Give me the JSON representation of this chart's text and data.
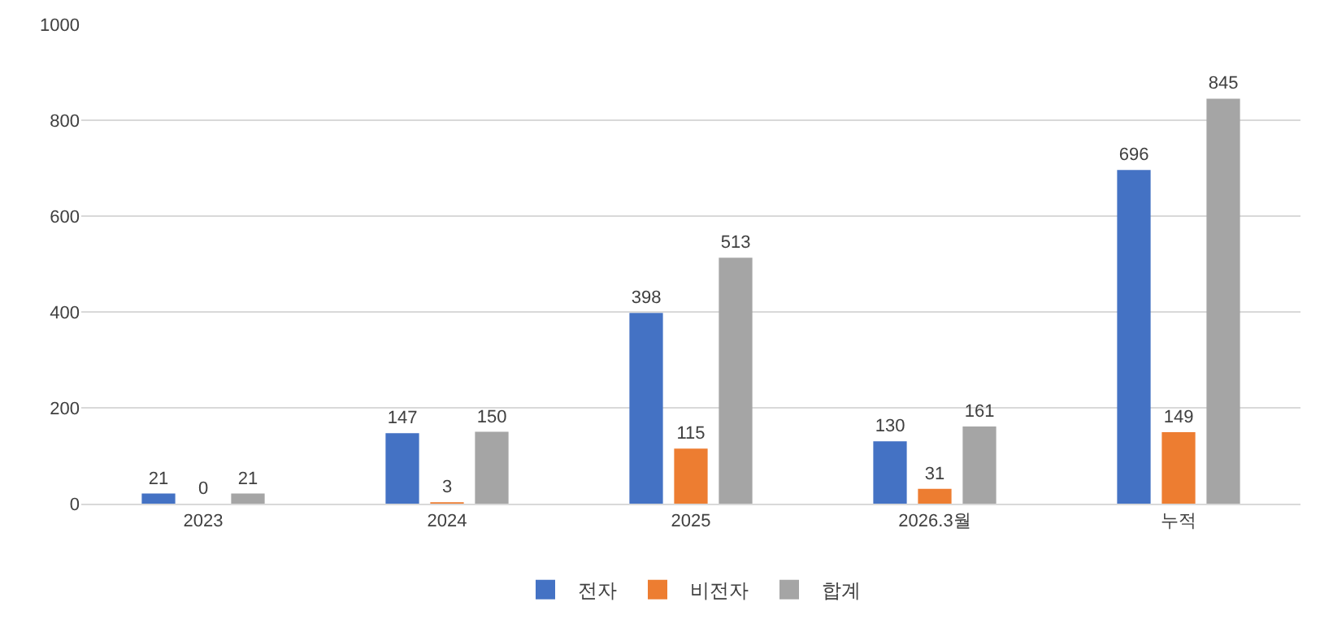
{
  "chart_data": {
    "type": "bar",
    "categories": [
      "2023",
      "2024",
      "2025",
      "2026.3월",
      "누적"
    ],
    "series": [
      {
        "name": "전자",
        "color": "#4472c4",
        "values": [
          21,
          147,
          398,
          130,
          696
        ]
      },
      {
        "name": "비전자",
        "color": "#ed7d31",
        "values": [
          0,
          3,
          115,
          31,
          149
        ]
      },
      {
        "name": "합계",
        "color": "#a5a5a5",
        "values": [
          21,
          150,
          513,
          161,
          845
        ]
      }
    ],
    "ylim": [
      0,
      1000
    ],
    "yticks": [
      0,
      200,
      400,
      600,
      800,
      1000
    ],
    "grid": "y",
    "legend": "bottom",
    "data_labels": true
  }
}
